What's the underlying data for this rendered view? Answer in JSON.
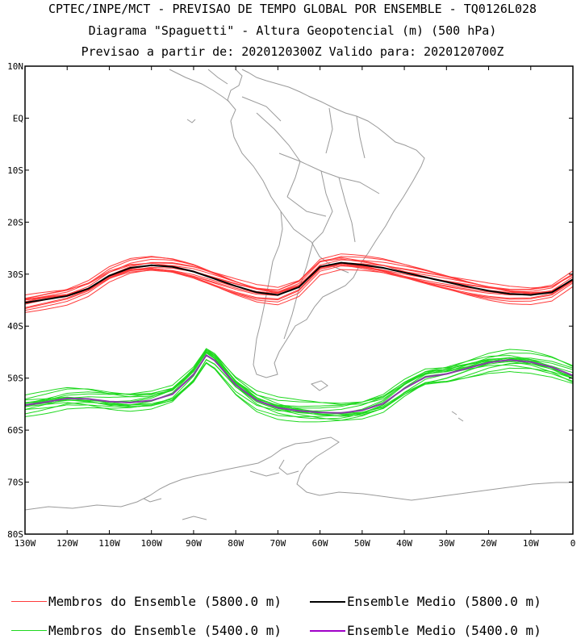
{
  "titles": {
    "line1": "CPTEC/INPE/MCT - PREVISAO DE TEMPO GLOBAL POR ENSEMBLE - TQ0126L028",
    "line2": "Diagrama \"Spaguetti\" - Altura Geopotencial (m) (500 hPa)",
    "line3": "Previsao a partir de: 2020120300Z  Valido para: 2020120700Z"
  },
  "axes": {
    "lat_labels": [
      "10N",
      "EQ",
      "10S",
      "20S",
      "30S",
      "40S",
      "50S",
      "60S",
      "70S",
      "80S"
    ],
    "lon_labels": [
      "130W",
      "120W",
      "110W",
      "100W",
      "90W",
      "80W",
      "70W",
      "60W",
      "50W",
      "40W",
      "30W",
      "20W",
      "10W",
      "0"
    ]
  },
  "legend": {
    "members_5800": "Membros do Ensemble (5800.0 m)",
    "mean_5800": "Ensemble Medio (5800.0 m)",
    "members_5400": "Membros do Ensemble (5400.0 m)",
    "mean_5400": "Ensemble Medio (5400.0 m)"
  },
  "colors": {
    "members_5800": "#ff3b3b",
    "mean_5800": "#000000",
    "members_5400": "#1ed81e",
    "mean_5400": "#8a3aa8",
    "coast": "#9a9a9a"
  },
  "chart_data": {
    "type": "line",
    "projection": "lat-lon",
    "xlim": [
      -130,
      0
    ],
    "ylim": [
      -80,
      10
    ],
    "series": [
      {
        "name": "Ensemble Medio (5800.0 m)",
        "x": [
          -130,
          -120,
          -115,
          -110,
          -105,
          -100,
          -95,
          -90,
          -85,
          -80,
          -75,
          -70,
          -65,
          -60,
          -55,
          -50,
          -45,
          -40,
          -35,
          -30,
          -25,
          -20,
          -15,
          -10,
          -5,
          0
        ],
        "values": [
          -35.5,
          -34.2,
          -32.8,
          -30.3,
          -28.8,
          -28.3,
          -28.6,
          -29.5,
          -30.9,
          -32.3,
          -33.5,
          -34.0,
          -32.5,
          -28.6,
          -27.8,
          -28.2,
          -28.8,
          -29.7,
          -30.6,
          -31.5,
          -32.4,
          -33.2,
          -33.8,
          -34.0,
          -33.5,
          -31.0
        ]
      },
      {
        "name": "Ensemble Medio (5400.0 m)",
        "x": [
          -130,
          -125,
          -120,
          -115,
          -110,
          -105,
          -100,
          -95,
          -90,
          -87,
          -85,
          -80,
          -75,
          -70,
          -65,
          -60,
          -55,
          -50,
          -45,
          -40,
          -35,
          -30,
          -25,
          -20,
          -15,
          -10,
          -5,
          0
        ],
        "values": [
          -55.2,
          -54.6,
          -53.9,
          -54.0,
          -54.5,
          -54.7,
          -54.3,
          -53.1,
          -49.3,
          -45.6,
          -46.6,
          -51.3,
          -54.3,
          -55.7,
          -56.3,
          -56.6,
          -56.7,
          -56.2,
          -54.9,
          -52.0,
          -49.8,
          -49.2,
          -48.1,
          -47.0,
          -46.5,
          -46.9,
          -47.9,
          -49.5
        ]
      }
    ]
  }
}
